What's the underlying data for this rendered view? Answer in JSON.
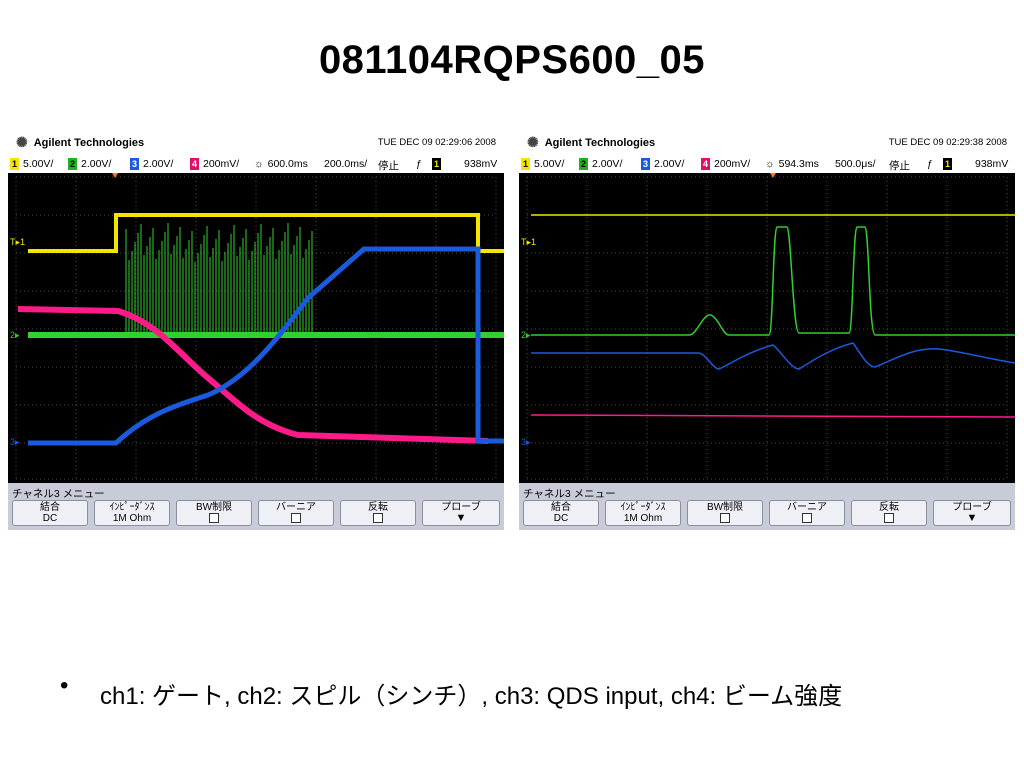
{
  "title": "081104RQPS600_05",
  "scopes": [
    {
      "brand": "Agilent Technologies",
      "datetime": "TUE DEC 09 02:29:06 2008",
      "ch1_scale": "5.00V/",
      "ch2_scale": "2.00V/",
      "ch3_scale": "2.00V/",
      "ch4_scale": "200mV/",
      "delay": "600.0ms",
      "timebase": "200.0ms/",
      "run_state": "停止",
      "trig_source": "1",
      "trig_level": "938mV",
      "menu_title": "チャネル3 メニュー",
      "buttons": {
        "coupling": "結合",
        "coupling_value": "DC",
        "impedance": "ｲﾝﾋﾟｰﾀﾞﾝｽ",
        "impedance_value": "1M Ohm",
        "bw_limit": "BW制限",
        "vernier": "バーニア",
        "invert": "反転",
        "probe": "プローブ"
      }
    },
    {
      "brand": "Agilent Technologies",
      "datetime": "TUE DEC 09 02:29:38 2008",
      "ch1_scale": "5.00V/",
      "ch2_scale": "2.00V/",
      "ch3_scale": "2.00V/",
      "ch4_scale": "200mV/",
      "delay": "594.3ms",
      "timebase": "500.0μs/",
      "run_state": "停止",
      "trig_source": "1",
      "trig_level": "938mV",
      "menu_title": "チャネル3 メニュー",
      "buttons": {
        "coupling": "結合",
        "coupling_value": "DC",
        "impedance": "ｲﾝﾋﾟｰﾀﾞﾝｽ",
        "impedance_value": "1M Ohm",
        "bw_limit": "BW制限",
        "vernier": "バーニア",
        "invert": "反転",
        "probe": "プローブ"
      }
    }
  ],
  "caption": "ch1: ゲート, ch2: スピル（シンチ）, ch3: QDS input, ch4: ビーム強度",
  "colors": {
    "ch1": "#f5e400",
    "ch2": "#30d030",
    "ch3": "#1a5adc",
    "ch4": "#ff1a8a"
  }
}
